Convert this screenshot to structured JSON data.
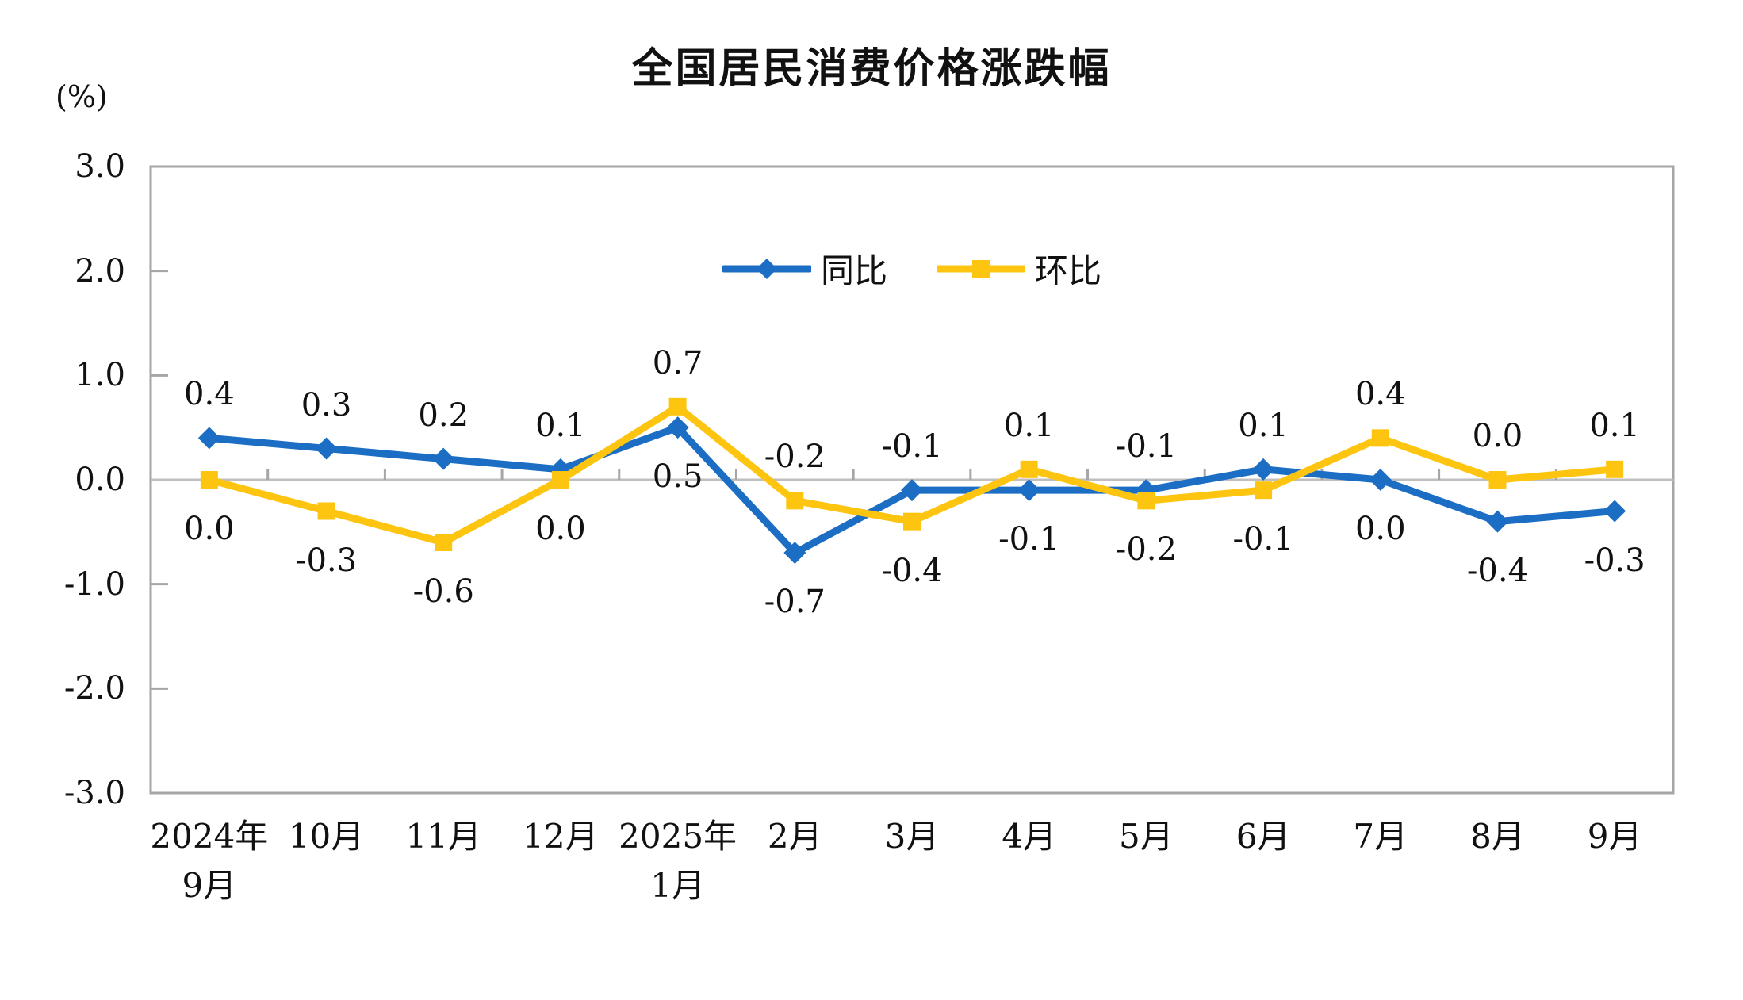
{
  "chart_data": {
    "type": "line",
    "title": "全国居民消费价格涨跌幅",
    "ylabel": "(%)",
    "ylim": [
      -3.0,
      3.0
    ],
    "yticks": [
      3.0,
      2.0,
      1.0,
      0.0,
      -1.0,
      -2.0,
      -3.0
    ],
    "grid": false,
    "zero_line": true,
    "legend_position": "top-center",
    "axis_color": "#A6A6A6",
    "zero_line_color": "#BFBFBF",
    "label_color": "#111111",
    "categories": [
      "2024年\n9月",
      "10月",
      "11月",
      "12月",
      "2025年\n1月",
      "2月",
      "3月",
      "4月",
      "5月",
      "6月",
      "7月",
      "8月",
      "9月"
    ],
    "series": [
      {
        "name": "同比",
        "marker": "diamond",
        "color": "#1B6EC3",
        "values": [
          0.4,
          0.3,
          0.2,
          0.1,
          0.5,
          -0.7,
          -0.1,
          -0.1,
          -0.1,
          0.1,
          0.0,
          -0.4,
          -0.3
        ]
      },
      {
        "name": "环比",
        "marker": "square",
        "color": "#FDC410",
        "values": [
          0.0,
          -0.3,
          -0.6,
          0.0,
          0.7,
          -0.2,
          -0.4,
          0.1,
          -0.2,
          -0.1,
          0.4,
          0.0,
          0.1
        ]
      }
    ]
  }
}
